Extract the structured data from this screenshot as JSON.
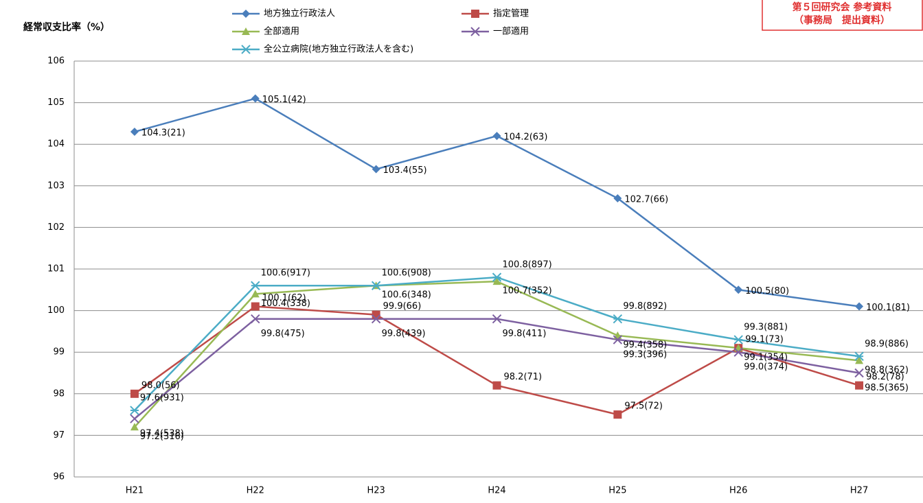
{
  "chart_data": {
    "type": "line",
    "ylabel": "経常収支比率（%）",
    "note": [
      "第５回研究会 参考資料",
      "（事務局　提出資料）"
    ],
    "categories": [
      "H21",
      "H22",
      "H23",
      "H24",
      "H25",
      "H26",
      "H27"
    ],
    "ylim": [
      96,
      106
    ],
    "yticks": [
      96,
      97,
      98,
      99,
      100,
      101,
      102,
      103,
      104,
      105,
      106
    ],
    "grid": true,
    "series": [
      {
        "name": "地方独立行政法人",
        "color": "#4a7ebb",
        "marker": "diamond",
        "values": [
          104.3,
          105.1,
          103.4,
          104.2,
          102.7,
          100.5,
          100.1
        ],
        "value_labels": [
          "104.3(21)",
          "105.1(42)",
          "103.4(55)",
          "104.2(63)",
          "102.7(66)",
          "100.5(80)",
          "100.1(81)"
        ]
      },
      {
        "name": "指定管理",
        "color": "#be4b48",
        "marker": "square",
        "values": [
          98.0,
          100.1,
          99.9,
          98.2,
          97.5,
          99.1,
          98.2
        ],
        "value_labels": [
          "98.0(56)",
          "100.1(62)",
          "99.9(66)",
          "98.2(71)",
          "97.5(72)",
          "99.1(73)",
          "98.2(78)"
        ]
      },
      {
        "name": "全部適用",
        "color": "#98b954",
        "marker": "triangle",
        "values": [
          97.2,
          100.4,
          100.6,
          100.7,
          99.4,
          99.1,
          98.8
        ],
        "value_labels": [
          "97.2(316)",
          "100.4(338)",
          "100.6(348)",
          "100.7(352)",
          "99.4(358)",
          "99.1(354)",
          "98.8(362)"
        ]
      },
      {
        "name": "一部適用",
        "color": "#7d60a0",
        "marker": "x",
        "values": [
          97.4,
          99.8,
          99.8,
          99.8,
          99.3,
          99.0,
          98.5
        ],
        "value_labels": [
          "97.4(538)",
          "99.8(475)",
          "99.8(439)",
          "99.8(411)",
          "99.3(396)",
          "99.0(374)",
          "98.5(365)"
        ]
      },
      {
        "name": "全公立病院(地方独立行政法人を含む)",
        "color": "#4bacc6",
        "marker": "asterisk",
        "values": [
          97.6,
          100.6,
          100.6,
          100.8,
          99.8,
          99.3,
          98.9
        ],
        "value_labels": [
          "97.6(931)",
          "100.6(917)",
          "100.6(908)",
          "100.8(897)",
          "99.8(892)",
          "99.3(881)",
          "98.9(886)"
        ]
      }
    ]
  }
}
